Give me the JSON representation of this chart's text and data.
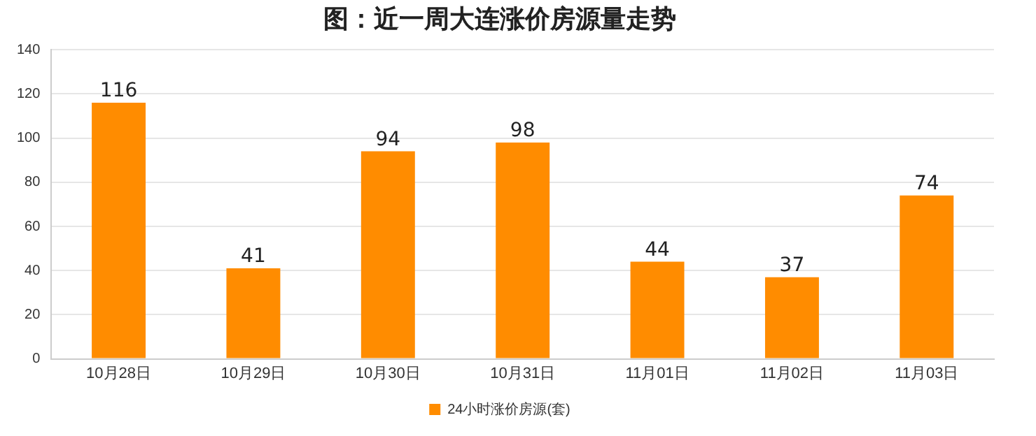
{
  "chart_data": {
    "type": "bar",
    "title": "图：近一周大连涨价房源量走势",
    "categories": [
      "10月28日",
      "10月29日",
      "10月30日",
      "10月31日",
      "11月01日",
      "11月02日",
      "11月03日"
    ],
    "series": [
      {
        "name": "24小时涨价房源(套)",
        "color": "#ff8c00",
        "values": [
          116,
          41,
          94,
          98,
          44,
          37,
          74
        ]
      }
    ],
    "ylim": [
      0,
      140
    ],
    "yticks": [
      0,
      20,
      40,
      60,
      80,
      100,
      120,
      140
    ],
    "grid": "y",
    "legend": "bottom",
    "data_labels": true
  }
}
